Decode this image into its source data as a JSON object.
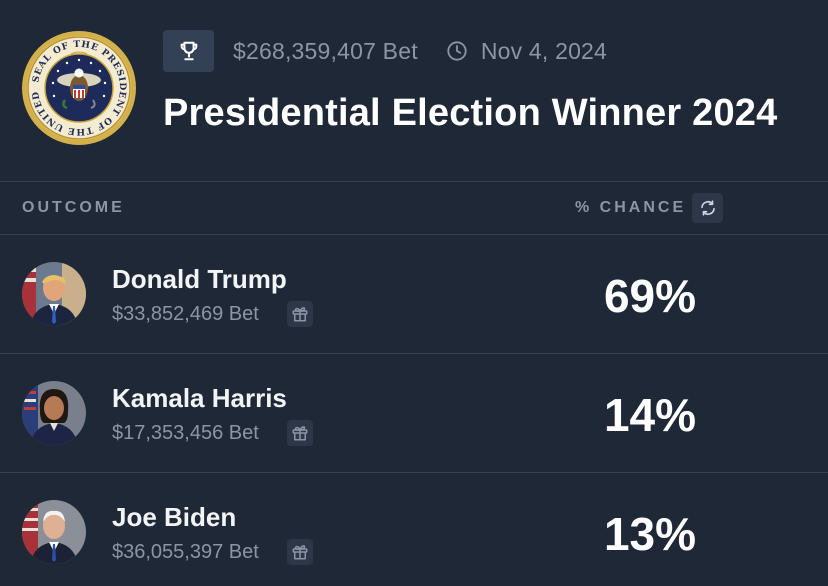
{
  "market": {
    "volume": "$268,359,407 Bet",
    "end_date": "Nov 4, 2024",
    "title": "Presidential Election Winner 2024",
    "seal_text": "SEAL OF THE PRESIDENT OF THE UNITED STATES"
  },
  "table": {
    "outcome_header": "OUTCOME",
    "chance_header": "% CHANCE"
  },
  "outcomes": [
    {
      "name": "Donald Trump",
      "bet": "$33,852,469 Bet",
      "chance": "69%"
    },
    {
      "name": "Kamala Harris",
      "bet": "$17,353,456 Bet",
      "chance": "14%"
    },
    {
      "name": "Joe Biden",
      "bet": "$36,055,397 Bet",
      "chance": "13%"
    }
  ],
  "icons": {
    "trophy": "trophy-icon",
    "clock": "clock-icon",
    "refresh": "refresh-icon",
    "gift": "gift-icon"
  },
  "colors": {
    "background": "#1f2836",
    "muted_text": "#8b95a5",
    "divider": "#374151",
    "seal_gold": "#c9a43a",
    "seal_blue": "#1e2a5a"
  }
}
